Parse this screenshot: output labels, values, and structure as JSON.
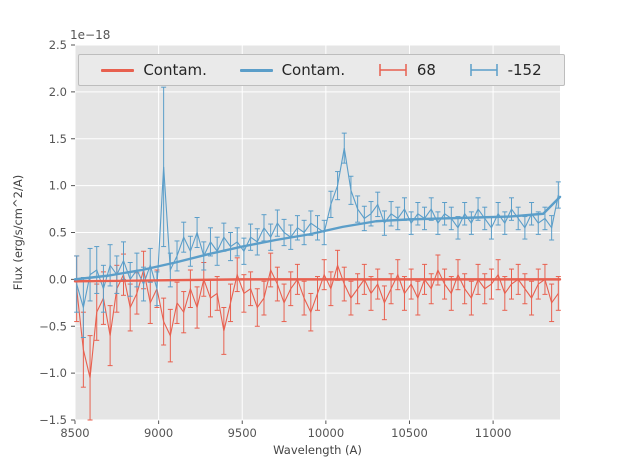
{
  "figure": {
    "offset_text": "1e−18",
    "xlabel": "Wavelength (A)",
    "ylabel": "Flux (erg/s/cm^2/A)"
  },
  "legend": {
    "items": [
      {
        "label": "Contam.",
        "type": "line",
        "color": "#e8604f"
      },
      {
        "label": "Contam.",
        "type": "line",
        "color": "#5b9ec9"
      },
      {
        "label": "68",
        "type": "errorbar",
        "color": "#e8604f"
      },
      {
        "label": "-152",
        "type": "errorbar",
        "color": "#5b9ec9"
      }
    ]
  },
  "chart_data": {
    "type": "line",
    "title": "",
    "xlabel": "Wavelength (A)",
    "ylabel": "Flux (erg/s/cm^2/A)",
    "y_scale_factor": "1e-18",
    "xlim": [
      8500,
      11400
    ],
    "ylim": [
      -1.5,
      2.5
    ],
    "xticks": [
      8500,
      9000,
      9500,
      10000,
      10500,
      11000
    ],
    "yticks": [
      -1.5,
      -1.0,
      -0.5,
      0.0,
      0.5,
      1.0,
      1.5,
      2.0,
      2.5
    ],
    "grid": true,
    "background": "#e5e5e5",
    "gridcolor": "#ffffff",
    "tickcolor": "#555555",
    "x": [
      8510,
      8550,
      8590,
      8630,
      8670,
      8710,
      8750,
      8790,
      8830,
      8870,
      8910,
      8950,
      8990,
      9030,
      9070,
      9110,
      9150,
      9190,
      9230,
      9270,
      9310,
      9350,
      9390,
      9430,
      9470,
      9510,
      9550,
      9590,
      9630,
      9670,
      9710,
      9750,
      9790,
      9830,
      9870,
      9910,
      9950,
      9990,
      10030,
      10070,
      10110,
      10150,
      10190,
      10230,
      10270,
      10310,
      10350,
      10390,
      10430,
      10470,
      10510,
      10550,
      10590,
      10630,
      10670,
      10710,
      10750,
      10790,
      10830,
      10870,
      10910,
      10950,
      10990,
      11030,
      11070,
      11110,
      11150,
      11190,
      11230,
      11270,
      11310,
      11350,
      11390
    ],
    "series": [
      {
        "name": "68",
        "style": "errorbar",
        "color": "#e8604f",
        "y": [
          -0.1,
          -0.75,
          -1.05,
          -0.35,
          -0.2,
          -0.6,
          -0.1,
          0.05,
          -0.3,
          -0.15,
          0.1,
          -0.25,
          -0.1,
          -0.45,
          -0.6,
          -0.25,
          -0.35,
          -0.1,
          -0.3,
          0.0,
          -0.2,
          -0.15,
          -0.55,
          -0.25,
          0.05,
          -0.15,
          -0.1,
          -0.3,
          -0.2,
          0.1,
          -0.05,
          -0.25,
          -0.1,
          0.0,
          -0.2,
          -0.35,
          -0.15,
          0.05,
          -0.1,
          0.15,
          -0.05,
          -0.2,
          -0.1,
          0.0,
          -0.15,
          -0.05,
          -0.25,
          -0.1,
          0.05,
          -0.15,
          -0.05,
          -0.2,
          0.0,
          -0.1,
          0.1,
          -0.05,
          -0.15,
          0.05,
          -0.1,
          -0.2,
          0.0,
          -0.1,
          -0.05,
          0.05,
          -0.15,
          -0.05,
          0.0,
          -0.1,
          -0.2,
          -0.05,
          0.0,
          -0.25,
          -0.15
        ],
        "yerr": [
          0.35,
          0.4,
          0.45,
          0.3,
          0.28,
          0.32,
          0.25,
          0.22,
          0.25,
          0.22,
          0.2,
          0.22,
          0.2,
          0.25,
          0.28,
          0.22,
          0.22,
          0.2,
          0.22,
          0.18,
          0.2,
          0.18,
          0.25,
          0.2,
          0.18,
          0.2,
          0.18,
          0.2,
          0.18,
          0.18,
          0.18,
          0.2,
          0.18,
          0.16,
          0.18,
          0.2,
          0.18,
          0.16,
          0.18,
          0.16,
          0.18,
          0.18,
          0.16,
          0.16,
          0.18,
          0.16,
          0.18,
          0.16,
          0.16,
          0.18,
          0.16,
          0.18,
          0.16,
          0.16,
          0.16,
          0.16,
          0.18,
          0.16,
          0.16,
          0.18,
          0.16,
          0.16,
          0.16,
          0.16,
          0.18,
          0.16,
          0.16,
          0.16,
          0.18,
          0.16,
          0.16,
          0.2,
          0.18
        ]
      },
      {
        "name": "-152",
        "style": "errorbar",
        "color": "#5b9ec9",
        "y": [
          -0.05,
          -0.3,
          0.05,
          0.1,
          -0.1,
          0.15,
          0.05,
          0.2,
          0.0,
          0.1,
          -0.05,
          0.15,
          -0.1,
          1.2,
          0.1,
          0.25,
          0.45,
          0.3,
          0.5,
          0.25,
          0.4,
          0.3,
          0.45,
          0.35,
          0.4,
          0.3,
          0.45,
          0.4,
          0.55,
          0.45,
          0.6,
          0.5,
          0.45,
          0.55,
          0.5,
          0.6,
          0.55,
          0.5,
          0.8,
          1.0,
          1.4,
          0.95,
          0.75,
          0.65,
          0.7,
          0.8,
          0.6,
          0.7,
          0.65,
          0.75,
          0.6,
          0.7,
          0.65,
          0.75,
          0.6,
          0.7,
          0.65,
          0.55,
          0.7,
          0.6,
          0.75,
          0.65,
          0.55,
          0.7,
          0.6,
          0.75,
          0.65,
          0.55,
          0.7,
          0.6,
          0.65,
          0.55,
          0.9
        ],
        "yerr": [
          0.3,
          0.32,
          0.28,
          0.25,
          0.25,
          0.22,
          0.2,
          0.2,
          0.18,
          0.18,
          0.18,
          0.18,
          0.18,
          0.85,
          0.18,
          0.16,
          0.16,
          0.16,
          0.16,
          0.15,
          0.15,
          0.15,
          0.15,
          0.15,
          0.15,
          0.14,
          0.14,
          0.14,
          0.14,
          0.14,
          0.14,
          0.14,
          0.13,
          0.13,
          0.13,
          0.13,
          0.13,
          0.13,
          0.14,
          0.15,
          0.16,
          0.15,
          0.14,
          0.13,
          0.13,
          0.13,
          0.13,
          0.13,
          0.12,
          0.12,
          0.12,
          0.12,
          0.12,
          0.12,
          0.12,
          0.12,
          0.12,
          0.12,
          0.12,
          0.12,
          0.12,
          0.12,
          0.12,
          0.12,
          0.12,
          0.12,
          0.12,
          0.12,
          0.12,
          0.12,
          0.12,
          0.13,
          0.14
        ]
      },
      {
        "name": "Contam.",
        "style": "model-line",
        "color": "#e8604f",
        "mx": [
          8500,
          9000,
          9500,
          10000,
          10500,
          11000,
          11400
        ],
        "my": [
          -0.02,
          -0.01,
          0.0,
          0.0,
          0.0,
          0.0,
          0.0
        ]
      },
      {
        "name": "Contam.",
        "style": "model-line",
        "color": "#5b9ec9",
        "mx": [
          8500,
          8700,
          8900,
          9100,
          9300,
          9500,
          9700,
          9900,
          10100,
          10300,
          10500,
          10700,
          10900,
          11100,
          11300,
          11400
        ],
        "my": [
          0.0,
          0.04,
          0.1,
          0.18,
          0.27,
          0.35,
          0.42,
          0.48,
          0.56,
          0.62,
          0.64,
          0.65,
          0.66,
          0.67,
          0.7,
          0.88
        ]
      }
    ]
  }
}
